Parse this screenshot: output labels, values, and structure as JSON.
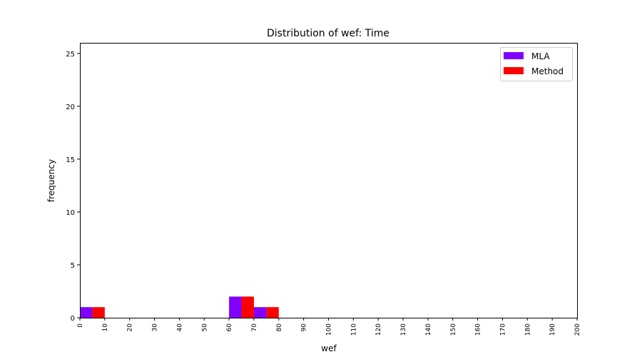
{
  "chart_data": {
    "type": "bar",
    "title": "Distribution of wef: Time",
    "xlabel": "wef",
    "ylabel": "frequency",
    "xlim": [
      0,
      200
    ],
    "ylim": [
      0,
      26
    ],
    "x_ticks": [
      0,
      10,
      20,
      30,
      40,
      50,
      60,
      70,
      80,
      90,
      100,
      110,
      120,
      130,
      140,
      150,
      160,
      170,
      180,
      190,
      200
    ],
    "y_ticks": [
      0,
      5,
      10,
      15,
      20,
      25
    ],
    "bin_width": 10,
    "bins": [
      0,
      60,
      70
    ],
    "series": [
      {
        "name": "MLA",
        "color": "#7f00ff",
        "values": [
          1,
          2,
          1
        ]
      },
      {
        "name": "Method",
        "color": "#ff0000",
        "values": [
          1,
          2,
          1
        ]
      }
    ],
    "legend_position": "top-right",
    "grid": false
  }
}
